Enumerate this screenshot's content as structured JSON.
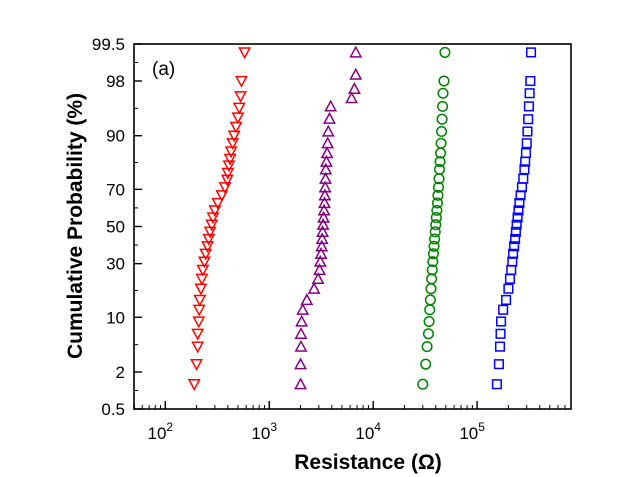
{
  "chart_data": {
    "type": "scatter",
    "panel_label": "(a)",
    "xlabel": "Resistance (Ω)",
    "ylabel": "Cumulative Probability (%)",
    "x_scale": "log",
    "y_scale": "normal-probability",
    "xlim": [
      50,
      800000
    ],
    "ylim": [
      0.5,
      99.5
    ],
    "x_ticks": [
      {
        "value": 100,
        "base": "10",
        "exp": "2"
      },
      {
        "value": 1000,
        "base": "10",
        "exp": "3"
      },
      {
        "value": 10000,
        "base": "10",
        "exp": "4"
      },
      {
        "value": 100000,
        "base": "10",
        "exp": "5"
      }
    ],
    "y_ticks": [
      0.5,
      2,
      10,
      30,
      50,
      70,
      90,
      98,
      99.5
    ],
    "grid": false,
    "legend": "none",
    "series": [
      {
        "marker": "triangle-down",
        "color": "#ff0000",
        "points": [
          [
            190,
            1.3
          ],
          [
            200,
            2.6
          ],
          [
            205,
            4.5
          ],
          [
            205,
            6.5
          ],
          [
            210,
            9
          ],
          [
            212,
            12
          ],
          [
            215,
            15
          ],
          [
            220,
            19
          ],
          [
            225,
            23
          ],
          [
            230,
            27
          ],
          [
            238,
            31
          ],
          [
            245,
            35
          ],
          [
            255,
            39
          ],
          [
            262,
            43
          ],
          [
            270,
            47
          ],
          [
            280,
            51
          ],
          [
            288,
            55
          ],
          [
            300,
            59
          ],
          [
            320,
            63
          ],
          [
            350,
            67
          ],
          [
            375,
            71
          ],
          [
            395,
            74.5
          ],
          [
            400,
            77.5
          ],
          [
            410,
            80.5
          ],
          [
            420,
            83
          ],
          [
            430,
            85.5
          ],
          [
            445,
            88
          ],
          [
            460,
            90
          ],
          [
            480,
            92
          ],
          [
            500,
            93.8
          ],
          [
            515,
            95.3
          ],
          [
            530,
            96.7
          ],
          [
            540,
            98
          ],
          [
            580,
            99.3
          ]
        ]
      },
      {
        "marker": "triangle-up",
        "color": "#800080",
        "points": [
          [
            2000,
            1.3
          ],
          [
            2000,
            2.6
          ],
          [
            2020,
            4.5
          ],
          [
            2020,
            6.5
          ],
          [
            2050,
            9
          ],
          [
            2100,
            12
          ],
          [
            2300,
            15
          ],
          [
            2700,
            19
          ],
          [
            2950,
            23
          ],
          [
            3050,
            27
          ],
          [
            3100,
            31
          ],
          [
            3150,
            35
          ],
          [
            3200,
            39
          ],
          [
            3230,
            43
          ],
          [
            3260,
            47
          ],
          [
            3300,
            51
          ],
          [
            3330,
            55
          ],
          [
            3370,
            59
          ],
          [
            3400,
            63
          ],
          [
            3430,
            67
          ],
          [
            3450,
            71
          ],
          [
            3480,
            75
          ],
          [
            3500,
            79
          ],
          [
            3550,
            82
          ],
          [
            3600,
            85
          ],
          [
            3650,
            88
          ],
          [
            3700,
            91
          ],
          [
            3800,
            93.6
          ],
          [
            3900,
            95.5
          ],
          [
            6200,
            96.5
          ],
          [
            6600,
            97.4
          ],
          [
            6800,
            98.4
          ],
          [
            6800,
            99.3
          ]
        ]
      },
      {
        "marker": "circle",
        "color": "#008000",
        "points": [
          [
            30000,
            1.3
          ],
          [
            32000,
            2.6
          ],
          [
            33000,
            4.5
          ],
          [
            34000,
            6.5
          ],
          [
            34500,
            9
          ],
          [
            35000,
            12
          ],
          [
            35500,
            15
          ],
          [
            36000,
            19
          ],
          [
            36500,
            23
          ],
          [
            37000,
            27
          ],
          [
            37500,
            31
          ],
          [
            38000,
            35
          ],
          [
            38500,
            39
          ],
          [
            39000,
            43
          ],
          [
            39500,
            47
          ],
          [
            40000,
            51
          ],
          [
            40500,
            55
          ],
          [
            41000,
            59
          ],
          [
            41500,
            63
          ],
          [
            42000,
            67
          ],
          [
            42500,
            71
          ],
          [
            43000,
            75
          ],
          [
            43500,
            79
          ],
          [
            44000,
            82
          ],
          [
            44500,
            85
          ],
          [
            45000,
            88
          ],
          [
            45500,
            91
          ],
          [
            46000,
            93.5
          ],
          [
            46500,
            95.5
          ],
          [
            47000,
            97
          ],
          [
            48000,
            98
          ],
          [
            49000,
            99.3
          ]
        ]
      },
      {
        "marker": "square",
        "color": "#0000ff",
        "points": [
          [
            155000,
            1.3
          ],
          [
            162000,
            2.6
          ],
          [
            166000,
            4.5
          ],
          [
            168000,
            6.5
          ],
          [
            170000,
            9
          ],
          [
            178000,
            12
          ],
          [
            190000,
            15
          ],
          [
            200000,
            19
          ],
          [
            207000,
            23
          ],
          [
            213000,
            27
          ],
          [
            218000,
            31
          ],
          [
            222000,
            35
          ],
          [
            227000,
            39
          ],
          [
            232000,
            43
          ],
          [
            236000,
            47
          ],
          [
            240000,
            51
          ],
          [
            245000,
            55
          ],
          [
            250000,
            59
          ],
          [
            255000,
            63
          ],
          [
            262000,
            67
          ],
          [
            270000,
            71
          ],
          [
            278000,
            75
          ],
          [
            285000,
            79
          ],
          [
            290000,
            82
          ],
          [
            295000,
            85
          ],
          [
            300000,
            88
          ],
          [
            305000,
            91
          ],
          [
            310000,
            93.5
          ],
          [
            315000,
            95.5
          ],
          [
            320000,
            97
          ],
          [
            325000,
            98
          ],
          [
            330000,
            99.3
          ]
        ]
      }
    ]
  }
}
